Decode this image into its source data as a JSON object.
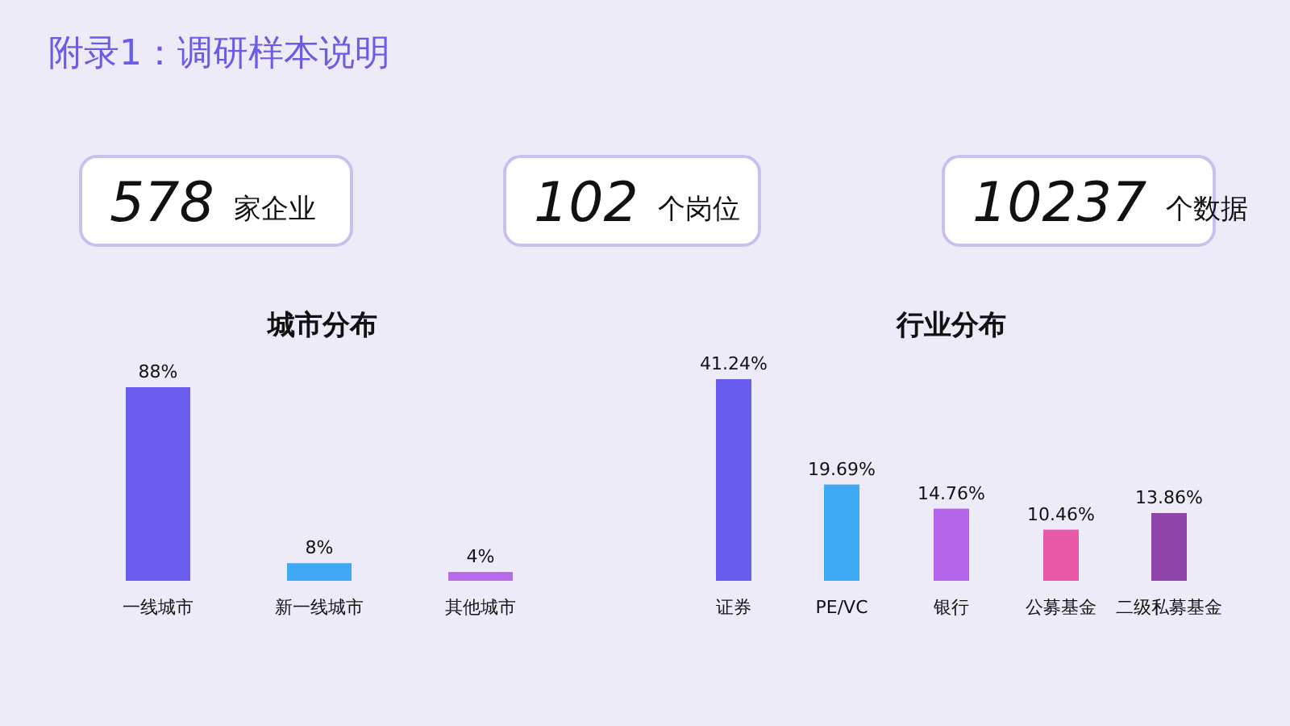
{
  "chart_data": [
    {
      "type": "other",
      "title": "附录1：调研样本说明",
      "annotations": [
        "578",
        "家企业",
        "102",
        "个岗位",
        "10237",
        "个数据"
      ]
    },
    {
      "type": "bar",
      "title": "城市分布",
      "categories": [
        "一线城市",
        "新一线城市",
        "其他城市"
      ],
      "values": [
        88,
        8,
        4
      ],
      "colors": [
        "#6c5cf0",
        "#3ea8f5",
        "#b86be8"
      ],
      "value_labels": [
        "88%",
        "8%",
        "4%"
      ]
    },
    {
      "type": "bar",
      "title": "行业分布",
      "categories": [
        "证券",
        "PE/VC",
        "银行",
        "公募基金",
        "二级私募基金"
      ],
      "values": [
        41.24,
        19.69,
        14.76,
        10.46,
        13.86
      ],
      "colors": [
        "#6b5cf0",
        "#3eaaf5",
        "#b565ea",
        "#e85aa8",
        "#8e44a8"
      ],
      "value_labels": [
        "41.24%",
        "19.69%",
        "14.76%",
        "10.46%",
        "13.86%"
      ]
    }
  ]
}
